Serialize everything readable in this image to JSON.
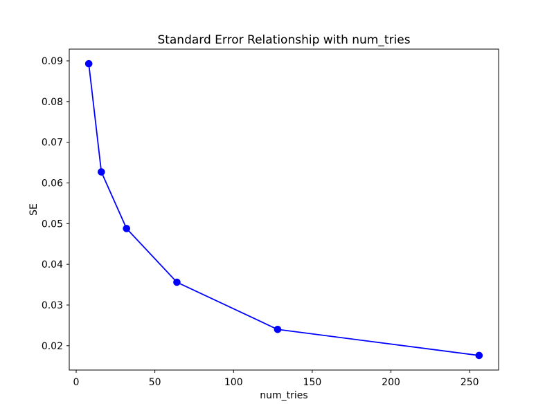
{
  "chart_data": {
    "type": "line",
    "title": "Standard Error Relationship with num_tries",
    "xlabel": "num_tries",
    "ylabel": "SE",
    "x": [
      8,
      16,
      32,
      64,
      128,
      256
    ],
    "series": [
      {
        "name": "SE",
        "color": "#0000ff",
        "marker": "o",
        "values": [
          0.0893,
          0.0627,
          0.0488,
          0.0356,
          0.024,
          0.0176
        ]
      }
    ],
    "x_ticks": {
      "values": [
        0,
        50,
        100,
        150,
        200,
        250
      ],
      "labels": [
        "0",
        "50",
        "100",
        "150",
        "200",
        "250"
      ]
    },
    "y_ticks": {
      "values": [
        0.02,
        0.03,
        0.04,
        0.05,
        0.06,
        0.07,
        0.08,
        0.09
      ],
      "labels": [
        "0.02",
        "0.03",
        "0.04",
        "0.05",
        "0.06",
        "0.07",
        "0.08",
        "0.09"
      ]
    },
    "xlim": [
      -4.4,
      268.4
    ],
    "ylim": [
      0.01402,
      0.09289
    ],
    "grid": false,
    "legend": "none",
    "axis_color": "#000000",
    "tick_label_color": "#000000",
    "background": "#ffffff"
  }
}
